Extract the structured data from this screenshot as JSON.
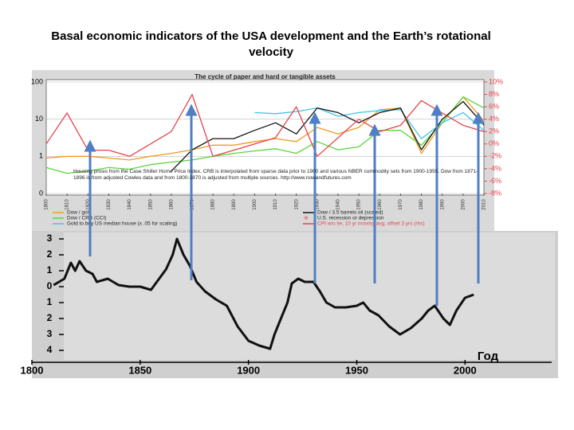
{
  "slide_title": "Basal economic indicators of the USA development and the Earth’s rotational velocity",
  "chart_data": [
    {
      "type": "line",
      "title": "The cycle of paper and hard or tangible assets",
      "yscale": "log",
      "x": [
        1800,
        1810,
        1820,
        1830,
        1840,
        1850,
        1860,
        1870,
        1880,
        1890,
        1900,
        1910,
        1920,
        1930,
        1940,
        1950,
        1960,
        1970,
        1980,
        1990,
        2000,
        2010
      ],
      "xlim": [
        1800,
        2010
      ],
      "xticks": [
        1800,
        1810,
        1820,
        1830,
        1840,
        1850,
        1860,
        1870,
        1880,
        1890,
        1900,
        1910,
        1920,
        1930,
        1940,
        1950,
        1960,
        1970,
        1980,
        1990,
        2000,
        2010
      ],
      "ylim": [
        0.1,
        100
      ],
      "yticks": [
        100,
        10,
        1,
        {
          "value": 0.1,
          "label": "0"
        }
      ],
      "y2lim": [
        -8,
        10
      ],
      "y2ticks": [
        {
          "value": 10,
          "label": "10%"
        },
        {
          "value": 8,
          "label": "8%"
        },
        {
          "value": 6,
          "label": "6%"
        },
        {
          "value": 4,
          "label": "4%"
        },
        {
          "value": 2,
          "label": "2%"
        },
        {
          "value": 0,
          "label": "0%"
        },
        {
          "value": -2,
          "label": "-2%"
        },
        {
          "value": -4,
          "label": "-4%"
        },
        {
          "value": -6,
          "label": "-6%"
        },
        {
          "value": -8,
          "label": "-8%"
        }
      ],
      "series": [
        {
          "name": "Dow / gold",
          "color": "#f39a1e",
          "values": [
            0.9,
            1.0,
            1.0,
            0.9,
            0.8,
            1.0,
            1.2,
            1.5,
            2,
            2,
            2.5,
            3,
            2.5,
            6,
            4,
            6,
            18,
            20,
            1.2,
            8,
            40,
            9
          ]
        },
        {
          "name": "Dow / CRB (CCI)",
          "color": "#5bd43a",
          "values": [
            0.5,
            0.35,
            0.4,
            0.5,
            0.45,
            0.6,
            0.7,
            0.8,
            1.0,
            1.2,
            1.4,
            1.6,
            1.2,
            2.5,
            1.5,
            1.8,
            5,
            5,
            2,
            8,
            40,
            20
          ]
        },
        {
          "name": "Gold to buy US median house (x .05 for scaling)",
          "color": "#3fc4e8",
          "values": [
            null,
            null,
            null,
            null,
            null,
            null,
            null,
            null,
            null,
            null,
            15,
            14,
            16,
            20,
            12,
            15,
            17,
            18,
            3,
            8,
            15,
            5
          ]
        },
        {
          "name": "Dow / 3.5 barrels oil (scaled)",
          "color": "#111111",
          "values": [
            null,
            null,
            null,
            null,
            null,
            null,
            0.4,
            1.5,
            3,
            3,
            5,
            8,
            4,
            20,
            15,
            8,
            15,
            20,
            1.5,
            10,
            30,
            7
          ]
        },
        {
          "name": "CPI w/o lie, 10 yr moving avg, offset 3 yrs (rhs)",
          "color": "#e8434a",
          "axis": "y2",
          "values": [
            0,
            5,
            -1,
            -1,
            -2,
            0,
            2,
            8,
            -2,
            -1,
            0,
            1,
            6,
            -2,
            1,
            4,
            2,
            3,
            7,
            5,
            3,
            2
          ]
        }
      ],
      "recession_label": "U.S. recession or depression",
      "annotation": "Housing prices from the Case Shiller Home Price Index. CRB is interpolated from sparse data prior to 1900 and various NBER commodity sets from 1900-1955. Dow from 1871-1896 is from adjusted Cowles data and from 1800-1870 is adjusted from multiple sources. http://www.nowandfutures.com"
    },
    {
      "type": "line",
      "x": [
        1810,
        1815,
        1818,
        1820,
        1822,
        1825,
        1828,
        1830,
        1835,
        1840,
        1845,
        1850,
        1855,
        1862,
        1865,
        1867,
        1870,
        1873,
        1876,
        1880,
        1885,
        1890,
        1895,
        1900,
        1905,
        1910,
        1912,
        1915,
        1918,
        1920,
        1923,
        1926,
        1930,
        1933,
        1936,
        1940,
        1945,
        1950,
        1953,
        1956,
        1960,
        1965,
        1970,
        1975,
        1980,
        1983,
        1986,
        1990,
        1993,
        1996,
        2000,
        2004
      ],
      "xlim": [
        1800,
        2040
      ],
      "xticks": [
        1800,
        1850,
        1900,
        1950,
        2000
      ],
      "xlabel": "Год",
      "ylim": [
        -4.5,
        3.5
      ],
      "yticks": [
        3,
        2,
        1,
        0,
        {
          "value": -1,
          "label": "1"
        },
        {
          "value": -2,
          "label": "2"
        },
        {
          "value": -3,
          "label": "3"
        },
        {
          "value": -4,
          "label": "4"
        }
      ],
      "series": [
        {
          "color": "#111111",
          "values": [
            0.1,
            0.5,
            1.5,
            1.0,
            1.6,
            1.0,
            0.8,
            0.3,
            0.5,
            0.1,
            0,
            0,
            -0.2,
            1.1,
            2.0,
            3.0,
            2.0,
            1.3,
            0.3,
            -0.3,
            -0.8,
            -1.2,
            -2.5,
            -3.4,
            -3.7,
            -3.9,
            -3.0,
            -2.0,
            -1.0,
            0.2,
            0.5,
            0.3,
            0.3,
            -0.3,
            -1.0,
            -1.3,
            -1.3,
            -1.2,
            -1.0,
            -1.5,
            -1.8,
            -2.5,
            -3.0,
            -2.6,
            -2.0,
            -1.5,
            -1.2,
            -2.0,
            -2.4,
            -1.5,
            -0.7,
            -0.5
          ]
        }
      ]
    }
  ]
}
